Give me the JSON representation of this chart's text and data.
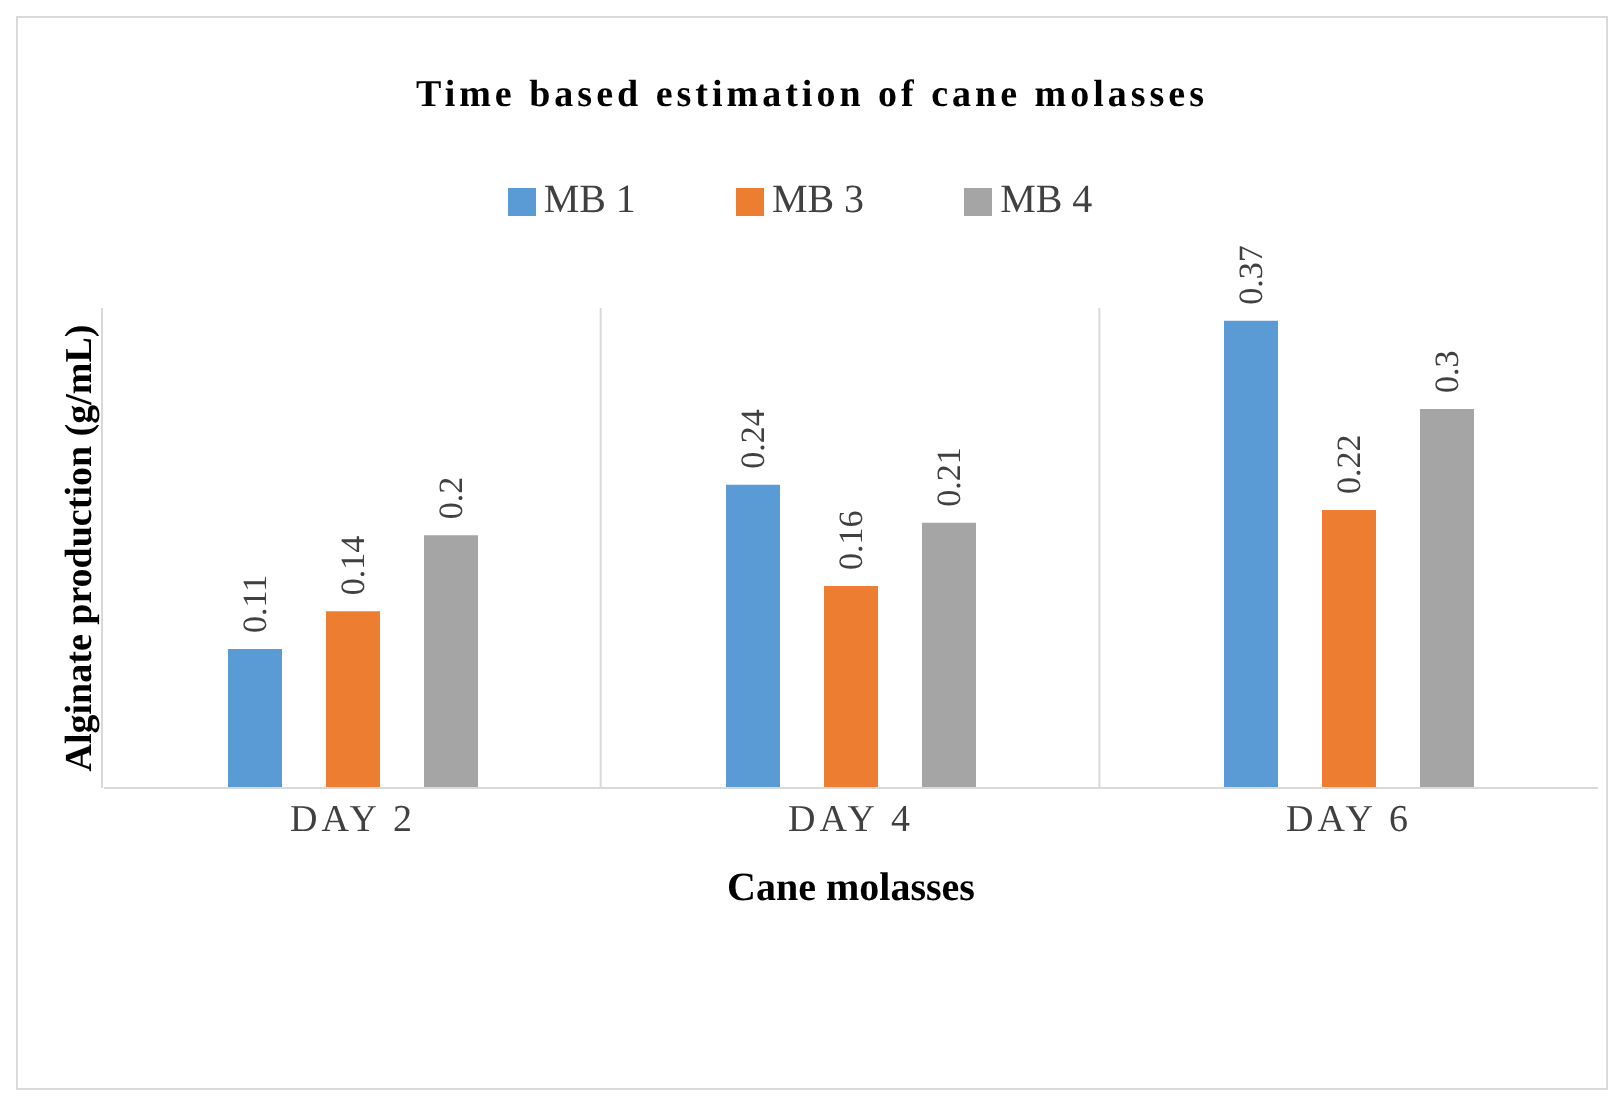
{
  "chart_data": {
    "type": "bar",
    "title": "Time based estimation of cane molasses",
    "xlabel": "Cane molasses",
    "ylabel": "Alginate production (g/mL)",
    "categories": [
      "DAY 2",
      "DAY 4",
      "DAY 6"
    ],
    "series": [
      {
        "name": "MB 1",
        "color": "#5b9bd5",
        "values": [
          0.11,
          0.24,
          0.37
        ]
      },
      {
        "name": "MB 3",
        "color": "#ed7d31",
        "values": [
          0.14,
          0.16,
          0.22
        ]
      },
      {
        "name": "MB 4",
        "color": "#a5a5a5",
        "values": [
          0.2,
          0.21,
          0.3
        ]
      }
    ],
    "data_labels": true,
    "legend": "top",
    "grid": "x",
    "tick_labels": "x"
  }
}
